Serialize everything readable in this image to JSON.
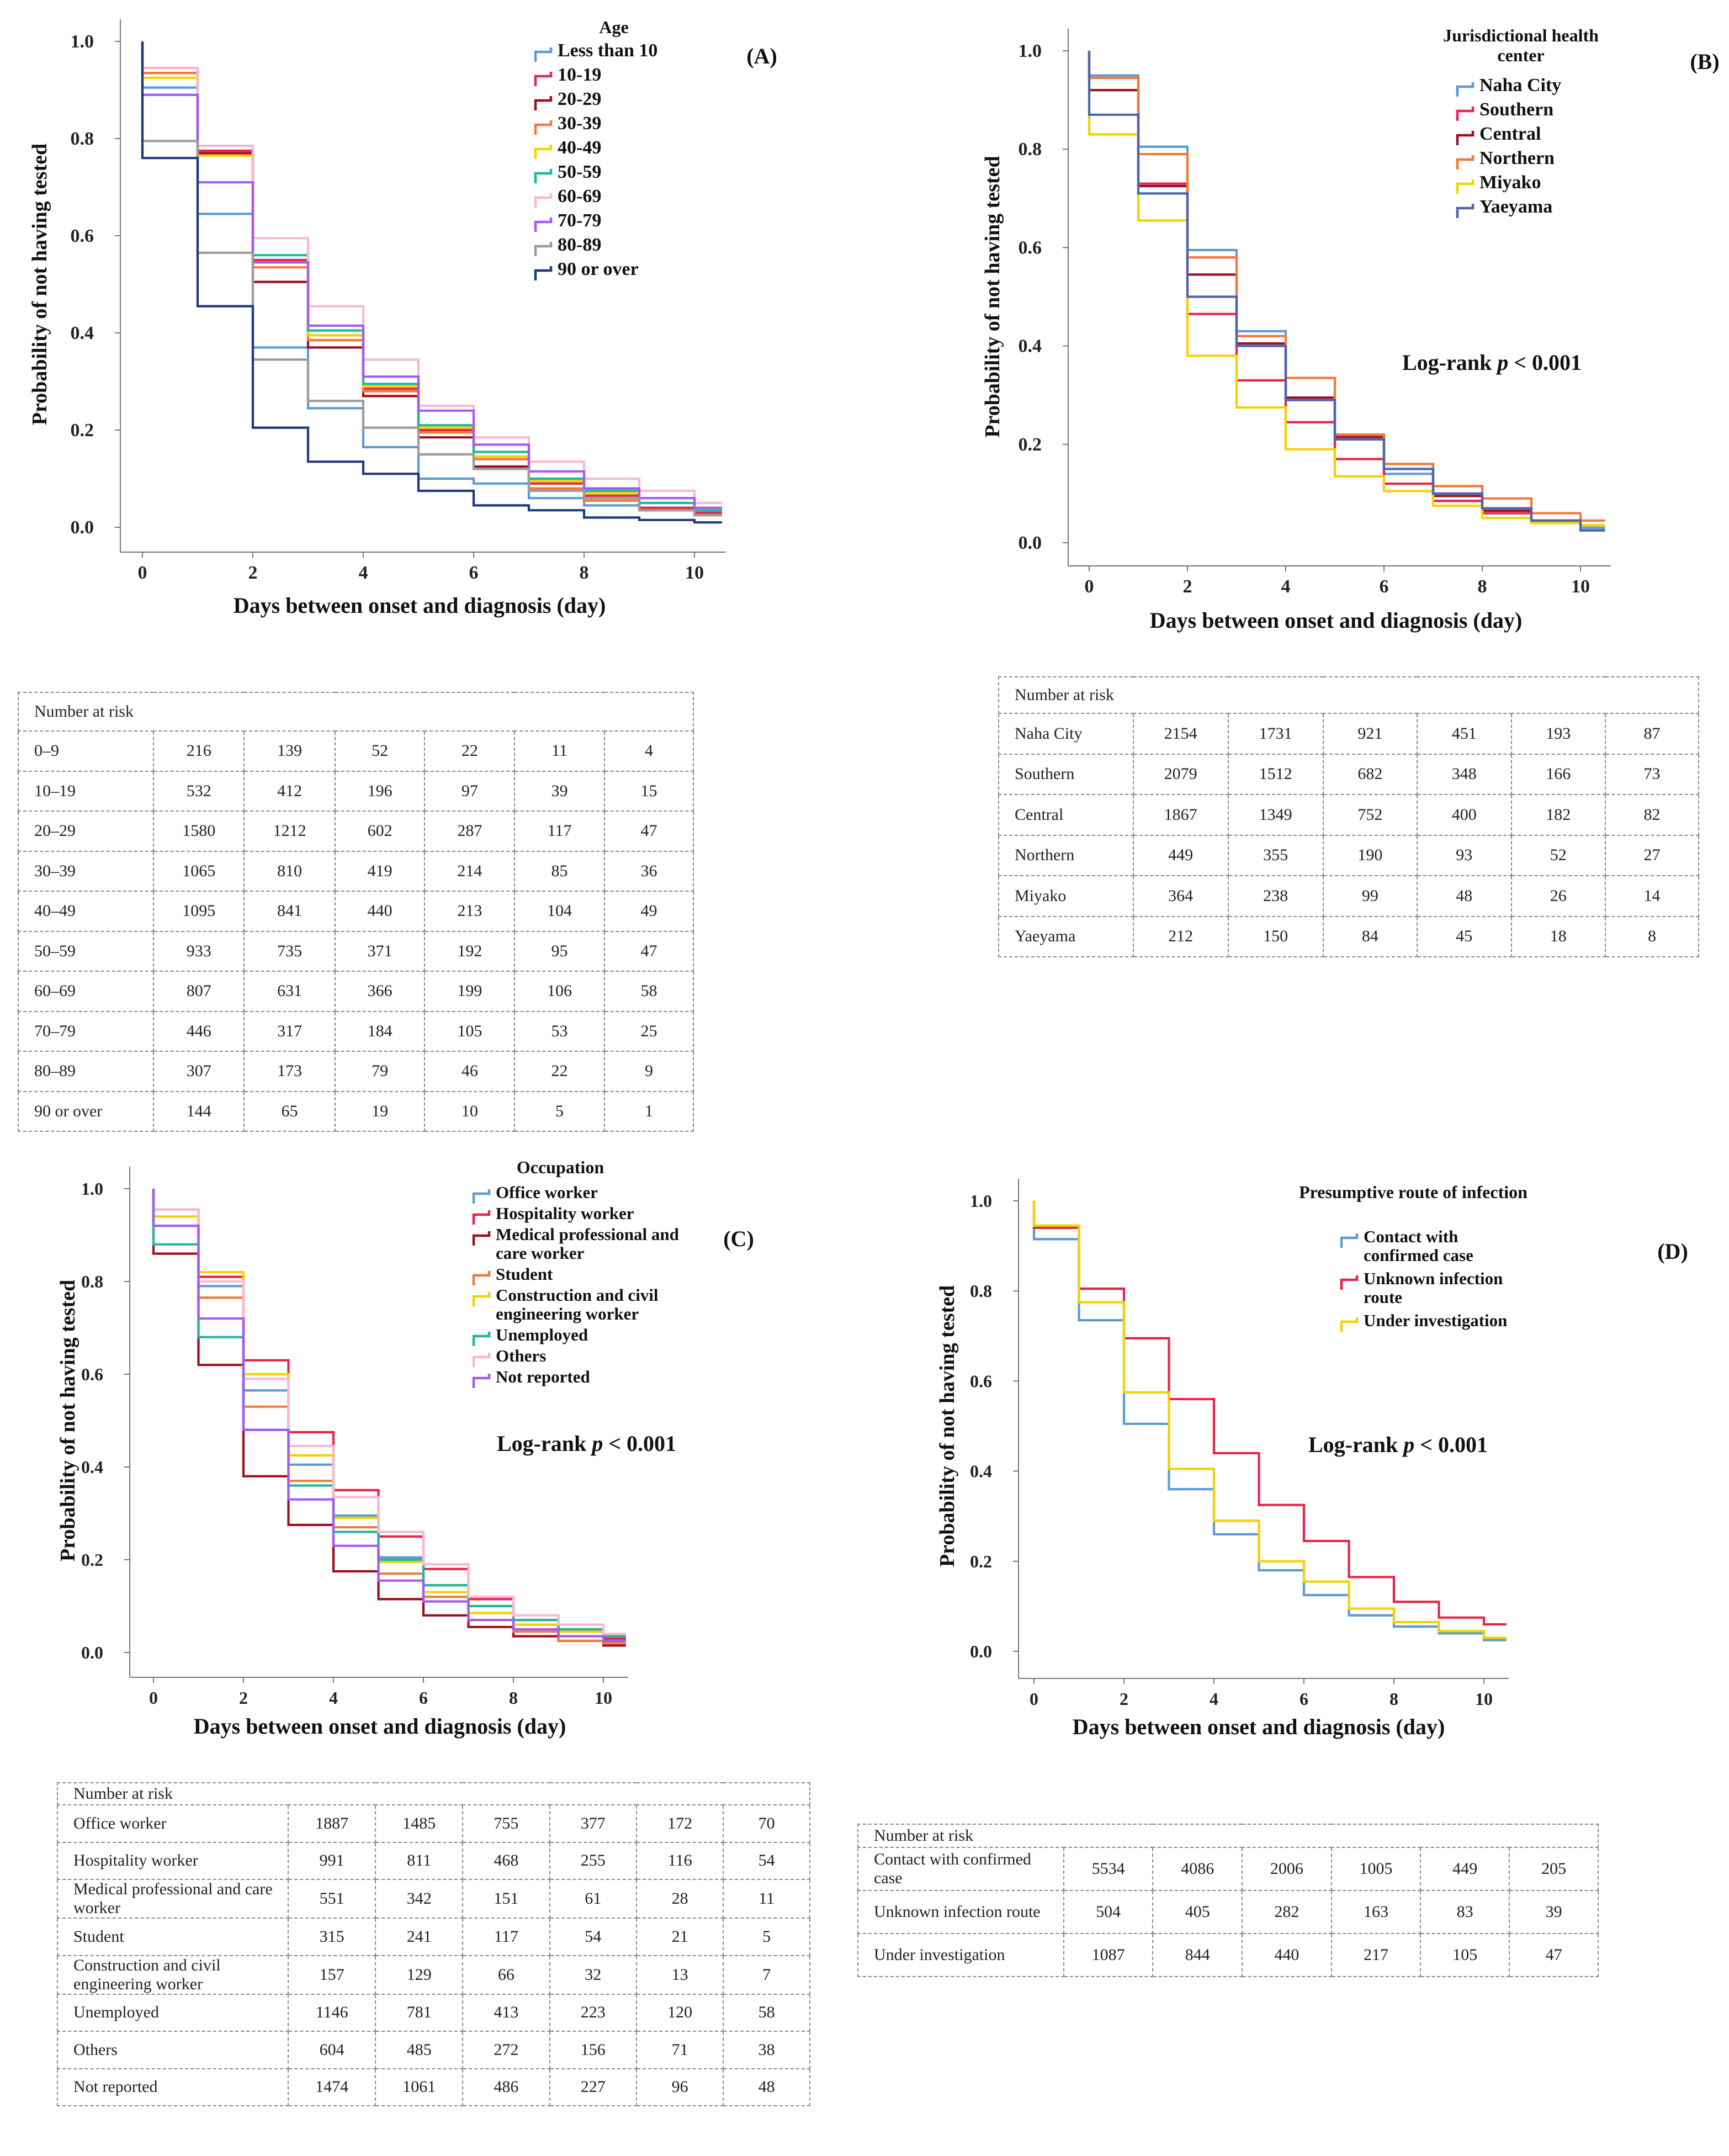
{
  "colors": {
    "blue": "#5b9bd5",
    "red": "#e8244a",
    "darkred": "#9b1021",
    "orange": "#f07a3a",
    "yellow": "#f2d300",
    "teal": "#1eb89a",
    "pink": "#f8b9d4",
    "purple": "#a35af2",
    "grey": "#9c9c9c",
    "navy": "#1f3a7a",
    "slate": "#4f64b0",
    "axis": "#777777"
  },
  "chart_data": [
    {
      "id": "A",
      "type": "line",
      "step": true,
      "panel_label": "(A)",
      "ylabel": "Probability of not having tested",
      "xlabel": "Days between onset and diagnosis (day)",
      "xlim": [
        0,
        10.5
      ],
      "ylim": [
        0,
        1.0
      ],
      "xticks": [
        0,
        2,
        4,
        6,
        8,
        10
      ],
      "yticks": [
        "0.0",
        "0.2",
        "0.4",
        "0.6",
        "0.8",
        "1.0"
      ],
      "legend_title": "Age",
      "log_rank": null,
      "series": [
        {
          "name": "Less than 10",
          "color": "blue",
          "y": [
            0.905,
            0.645,
            0.37,
            0.245,
            0.165,
            0.1,
            0.09,
            0.06,
            0.045,
            0.04,
            0.04
          ]
        },
        {
          "name": "10-19",
          "color": "red",
          "y": [
            0.935,
            0.775,
            0.55,
            0.385,
            0.285,
            0.2,
            0.145,
            0.09,
            0.065,
            0.04,
            0.03
          ]
        },
        {
          "name": "20-29",
          "color": "darkred",
          "y": [
            0.945,
            0.77,
            0.505,
            0.37,
            0.27,
            0.185,
            0.125,
            0.08,
            0.055,
            0.035,
            0.025
          ]
        },
        {
          "name": "30-39",
          "color": "orange",
          "y": [
            0.935,
            0.765,
            0.535,
            0.385,
            0.28,
            0.195,
            0.14,
            0.08,
            0.055,
            0.035,
            0.025
          ]
        },
        {
          "name": "40-49",
          "color": "yellow",
          "y": [
            0.925,
            0.765,
            0.545,
            0.395,
            0.29,
            0.205,
            0.145,
            0.095,
            0.07,
            0.05,
            0.04
          ]
        },
        {
          "name": "50-59",
          "color": "teal",
          "y": [
            0.945,
            0.785,
            0.56,
            0.405,
            0.295,
            0.21,
            0.155,
            0.1,
            0.075,
            0.05,
            0.035
          ]
        },
        {
          "name": "60-69",
          "color": "pink",
          "y": [
            0.945,
            0.785,
            0.595,
            0.455,
            0.345,
            0.25,
            0.185,
            0.135,
            0.1,
            0.075,
            0.05
          ]
        },
        {
          "name": "70-79",
          "color": "purple",
          "y": [
            0.89,
            0.71,
            0.545,
            0.415,
            0.31,
            0.24,
            0.17,
            0.115,
            0.08,
            0.06,
            0.04
          ]
        },
        {
          "name": "80-89",
          "color": "grey",
          "y": [
            0.795,
            0.565,
            0.345,
            0.26,
            0.205,
            0.15,
            0.12,
            0.075,
            0.06,
            0.035,
            0.025
          ]
        },
        {
          "name": "90 or over",
          "color": "navy",
          "y": [
            0.76,
            0.455,
            0.205,
            0.135,
            0.11,
            0.075,
            0.045,
            0.035,
            0.02,
            0.015,
            0.01
          ]
        }
      ]
    },
    {
      "id": "B",
      "type": "line",
      "step": true,
      "panel_label": "(B)",
      "ylabel": "Probability of not having tested",
      "xlabel": "Days between onset and diagnosis (day)",
      "xlim": [
        0,
        10.5
      ],
      "ylim": [
        0,
        1.0
      ],
      "xticks": [
        0,
        2,
        4,
        6,
        8,
        10
      ],
      "yticks": [
        "0.0",
        "0.2",
        "0.4",
        "0.6",
        "0.8",
        "1.0"
      ],
      "legend_title": "Jurisdictional health center",
      "log_rank": {
        "label": "Log-rank",
        "p": "p",
        "value": "< 0.001"
      },
      "series": [
        {
          "name": "Naha City",
          "color": "blue",
          "y": [
            0.95,
            0.805,
            0.595,
            0.43,
            0.295,
            0.215,
            0.14,
            0.085,
            0.06,
            0.04,
            0.03
          ]
        },
        {
          "name": "Southern",
          "color": "red",
          "y": [
            0.945,
            0.73,
            0.465,
            0.33,
            0.245,
            0.17,
            0.12,
            0.085,
            0.06,
            0.045,
            0.035
          ]
        },
        {
          "name": "Central",
          "color": "darkred",
          "y": [
            0.92,
            0.725,
            0.545,
            0.405,
            0.295,
            0.215,
            0.16,
            0.095,
            0.065,
            0.045,
            0.035
          ]
        },
        {
          "name": "Northern",
          "color": "orange",
          "y": [
            0.945,
            0.79,
            0.58,
            0.42,
            0.335,
            0.22,
            0.16,
            0.115,
            0.09,
            0.06,
            0.045
          ]
        },
        {
          "name": "Miyako",
          "color": "yellow",
          "y": [
            0.83,
            0.655,
            0.38,
            0.275,
            0.19,
            0.135,
            0.105,
            0.075,
            0.05,
            0.04,
            0.035
          ]
        },
        {
          "name": "Yaeyama",
          "color": "slate",
          "y": [
            0.87,
            0.71,
            0.5,
            0.4,
            0.29,
            0.21,
            0.15,
            0.1,
            0.07,
            0.045,
            0.025
          ]
        }
      ]
    },
    {
      "id": "C",
      "type": "line",
      "step": true,
      "panel_label": "(C)",
      "ylabel": "Probability of not having tested",
      "xlabel": "Days between onset and diagnosis (day)",
      "xlim": [
        0,
        10.5
      ],
      "ylim": [
        0,
        1.0
      ],
      "xticks": [
        0,
        2,
        4,
        6,
        8,
        10
      ],
      "yticks": [
        "0.0",
        "0.2",
        "0.4",
        "0.6",
        "0.8",
        "1.0"
      ],
      "legend_title": "Occupation",
      "log_rank": {
        "label": "Log-rank",
        "p": "p",
        "value": "< 0.001"
      },
      "series": [
        {
          "name": "Office worker",
          "color": "blue",
          "y": [
            0.92,
            0.79,
            0.565,
            0.405,
            0.295,
            0.205,
            0.145,
            0.1,
            0.07,
            0.045,
            0.03
          ]
        },
        {
          "name": "Hospitality worker",
          "color": "red",
          "y": [
            0.955,
            0.81,
            0.63,
            0.475,
            0.35,
            0.25,
            0.18,
            0.115,
            0.07,
            0.05,
            0.03
          ]
        },
        {
          "name": "Medical professional and care worker",
          "color": "darkred",
          "y": [
            0.86,
            0.62,
            0.38,
            0.275,
            0.175,
            0.115,
            0.08,
            0.055,
            0.035,
            0.025,
            0.015
          ]
        },
        {
          "name": "Student",
          "color": "orange",
          "y": [
            0.955,
            0.765,
            0.53,
            0.37,
            0.27,
            0.17,
            0.12,
            0.07,
            0.045,
            0.025,
            0.02
          ]
        },
        {
          "name": "Construction and civil engineering worker",
          "color": "yellow",
          "y": [
            0.94,
            0.82,
            0.6,
            0.425,
            0.29,
            0.195,
            0.13,
            0.085,
            0.06,
            0.045,
            0.035
          ]
        },
        {
          "name": "Unemployed",
          "color": "teal",
          "y": [
            0.88,
            0.68,
            0.48,
            0.36,
            0.26,
            0.2,
            0.145,
            0.1,
            0.07,
            0.05,
            0.035
          ]
        },
        {
          "name": "Others",
          "color": "pink",
          "y": [
            0.955,
            0.8,
            0.59,
            0.445,
            0.335,
            0.26,
            0.19,
            0.12,
            0.08,
            0.06,
            0.04
          ]
        },
        {
          "name": "Not reported",
          "color": "purple",
          "y": [
            0.92,
            0.72,
            0.48,
            0.33,
            0.23,
            0.155,
            0.11,
            0.07,
            0.05,
            0.035,
            0.025
          ]
        }
      ]
    },
    {
      "id": "D",
      "type": "line",
      "step": true,
      "panel_label": "(D)",
      "ylabel": "Probability of not having tested",
      "xlabel": "Days between onset and diagnosis (day)",
      "xlim": [
        0,
        10.5
      ],
      "ylim": [
        0,
        1.0
      ],
      "xticks": [
        0,
        2,
        4,
        6,
        8,
        10
      ],
      "yticks": [
        "0.0",
        "0.2",
        "0.4",
        "0.6",
        "0.8",
        "1.0"
      ],
      "legend_title": "Presumptive route of infection",
      "log_rank": {
        "label": "Log-rank",
        "p": "p",
        "value": "< 0.001"
      },
      "series": [
        {
          "name": "Contact with confirmed case",
          "color": "blue",
          "y": [
            0.915,
            0.735,
            0.505,
            0.36,
            0.26,
            0.18,
            0.125,
            0.08,
            0.055,
            0.04,
            0.025
          ]
        },
        {
          "name": "Unknown infection route",
          "color": "red",
          "y": [
            0.94,
            0.805,
            0.695,
            0.56,
            0.44,
            0.325,
            0.245,
            0.165,
            0.11,
            0.075,
            0.06
          ]
        },
        {
          "name": "Under investigation",
          "color": "yellow",
          "y": [
            0.945,
            0.775,
            0.575,
            0.405,
            0.29,
            0.2,
            0.155,
            0.095,
            0.065,
            0.045,
            0.03
          ]
        }
      ]
    }
  ],
  "risk_tables": [
    {
      "id": "A",
      "header": "Number at risk",
      "rows": [
        {
          "label": "0–9",
          "values": [
            "216",
            "139",
            "52",
            "22",
            "11",
            "4"
          ]
        },
        {
          "label": "10–19",
          "values": [
            "532",
            "412",
            "196",
            "97",
            "39",
            "15"
          ]
        },
        {
          "label": "20–29",
          "values": [
            "1580",
            "1212",
            "602",
            "287",
            "117",
            "47"
          ]
        },
        {
          "label": "30–39",
          "values": [
            "1065",
            "810",
            "419",
            "214",
            "85",
            "36"
          ]
        },
        {
          "label": "40–49",
          "values": [
            "1095",
            "841",
            "440",
            "213",
            "104",
            "49"
          ]
        },
        {
          "label": "50–59",
          "values": [
            "933",
            "735",
            "371",
            "192",
            "95",
            "47"
          ]
        },
        {
          "label": "60–69",
          "values": [
            "807",
            "631",
            "366",
            "199",
            "106",
            "58"
          ]
        },
        {
          "label": "70–79",
          "values": [
            "446",
            "317",
            "184",
            "105",
            "53",
            "25"
          ]
        },
        {
          "label": "80–89",
          "values": [
            "307",
            "173",
            "79",
            "46",
            "22",
            "9"
          ]
        },
        {
          "label": "90 or over",
          "values": [
            "144",
            "65",
            "19",
            "10",
            "5",
            "1"
          ]
        }
      ]
    },
    {
      "id": "B",
      "header": "Number at risk",
      "rows": [
        {
          "label": "Naha City",
          "values": [
            "2154",
            "1731",
            "921",
            "451",
            "193",
            "87"
          ]
        },
        {
          "label": "Southern",
          "values": [
            "2079",
            "1512",
            "682",
            "348",
            "166",
            "73"
          ]
        },
        {
          "label": "Central",
          "values": [
            "1867",
            "1349",
            "752",
            "400",
            "182",
            "82"
          ]
        },
        {
          "label": "Northern",
          "values": [
            "449",
            "355",
            "190",
            "93",
            "52",
            "27"
          ]
        },
        {
          "label": "Miyako",
          "values": [
            "364",
            "238",
            "99",
            "48",
            "26",
            "14"
          ]
        },
        {
          "label": "Yaeyama",
          "values": [
            "212",
            "150",
            "84",
            "45",
            "18",
            "8"
          ]
        }
      ]
    },
    {
      "id": "C",
      "header": "Number at risk",
      "rows": [
        {
          "label": "Office worker",
          "values": [
            "1887",
            "1485",
            "755",
            "377",
            "172",
            "70"
          ]
        },
        {
          "label": "Hospitality worker",
          "values": [
            "991",
            "811",
            "468",
            "255",
            "116",
            "54"
          ]
        },
        {
          "label": "Medical professional and care worker",
          "values": [
            "551",
            "342",
            "151",
            "61",
            "28",
            "11"
          ]
        },
        {
          "label": "Student",
          "values": [
            "315",
            "241",
            "117",
            "54",
            "21",
            "5"
          ]
        },
        {
          "label": "Construction and civil engineering worker",
          "values": [
            "157",
            "129",
            "66",
            "32",
            "13",
            "7"
          ]
        },
        {
          "label": "Unemployed",
          "values": [
            "1146",
            "781",
            "413",
            "223",
            "120",
            "58"
          ]
        },
        {
          "label": "Others",
          "values": [
            "604",
            "485",
            "272",
            "156",
            "71",
            "38"
          ]
        },
        {
          "label": "Not reported",
          "values": [
            "1474",
            "1061",
            "486",
            "227",
            "96",
            "48"
          ]
        }
      ]
    },
    {
      "id": "D",
      "header": "Number at risk",
      "rows": [
        {
          "label": "Contact with confirmed case",
          "values": [
            "5534",
            "4086",
            "2006",
            "1005",
            "449",
            "205"
          ]
        },
        {
          "label": "Unknown infection route",
          "values": [
            "504",
            "405",
            "282",
            "163",
            "83",
            "39"
          ]
        },
        {
          "label": "Under investigation",
          "values": [
            "1087",
            "844",
            "440",
            "217",
            "105",
            "47"
          ]
        }
      ]
    }
  ]
}
